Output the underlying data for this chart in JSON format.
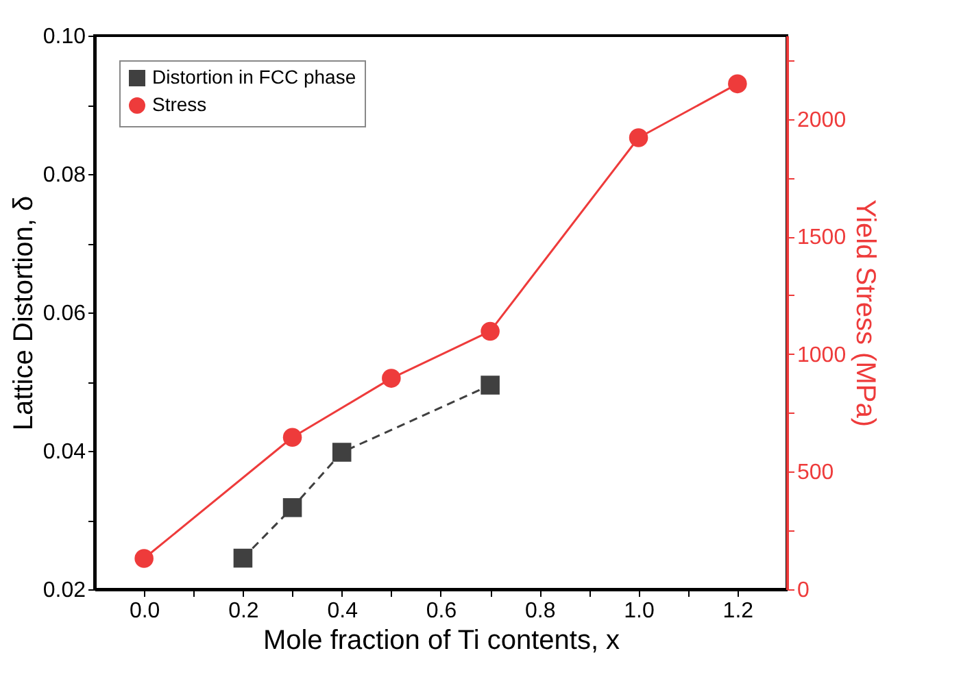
{
  "chart_data": {
    "type": "line",
    "xlabel": "Mole fraction of Ti contents, x",
    "ylabel": "Lattice Distortion, δ",
    "y2label": "Yield Stress (MPa)",
    "xlim": [
      -0.1,
      1.3
    ],
    "xticks": [
      {
        "value": 0,
        "label": "0.0"
      },
      {
        "value": 0.1,
        "label": null
      },
      0.2,
      {
        "value": 0.3,
        "label": null
      },
      0.4,
      {
        "value": 0.5,
        "label": null
      },
      0.6,
      {
        "value": 0.7,
        "label": null
      },
      0.8,
      {
        "value": 0.9,
        "label": null
      },
      {
        "value": 1,
        "label": "1.0"
      },
      {
        "value": 1.1,
        "label": null
      },
      1.2
    ],
    "ylim": [
      0.02,
      0.1
    ],
    "yticks": [
      0.02,
      {
        "value": 0.03,
        "label": null
      },
      0.04,
      {
        "value": 0.05,
        "label": null
      },
      0.06,
      {
        "value": 0.07,
        "label": null
      },
      0.08,
      {
        "value": 0.09,
        "label": null
      },
      {
        "value": 0.1,
        "label": "0.10"
      }
    ],
    "y2lim": [
      0,
      2354
    ],
    "y2ticks": [
      0,
      {
        "value": 250,
        "label": null
      },
      500,
      {
        "value": 750,
        "label": null
      },
      1000,
      {
        "value": 1250,
        "label": null
      },
      1500,
      {
        "value": 1750,
        "label": null
      },
      2000,
      {
        "value": 2250,
        "label": null
      }
    ],
    "grid": false,
    "legend": "top left",
    "series": [
      {
        "name": "Distortion in FCC phase",
        "color": "#404040",
        "marker": "square",
        "line_style": "dashed",
        "x": [
          0.2,
          0.3,
          0.4,
          0.7
        ],
        "values": [
          0.0245,
          0.0318,
          0.0398,
          0.0495
        ]
      },
      {
        "name": "Stress",
        "color": "#ee3b3b",
        "marker": "circle",
        "line_style": "solid",
        "axis": "y2",
        "x": [
          0,
          0.3,
          0.5,
          0.7,
          1,
          1.2
        ],
        "values": [
          131,
          646,
          897,
          1097,
          1920,
          2149
        ]
      }
    ]
  }
}
